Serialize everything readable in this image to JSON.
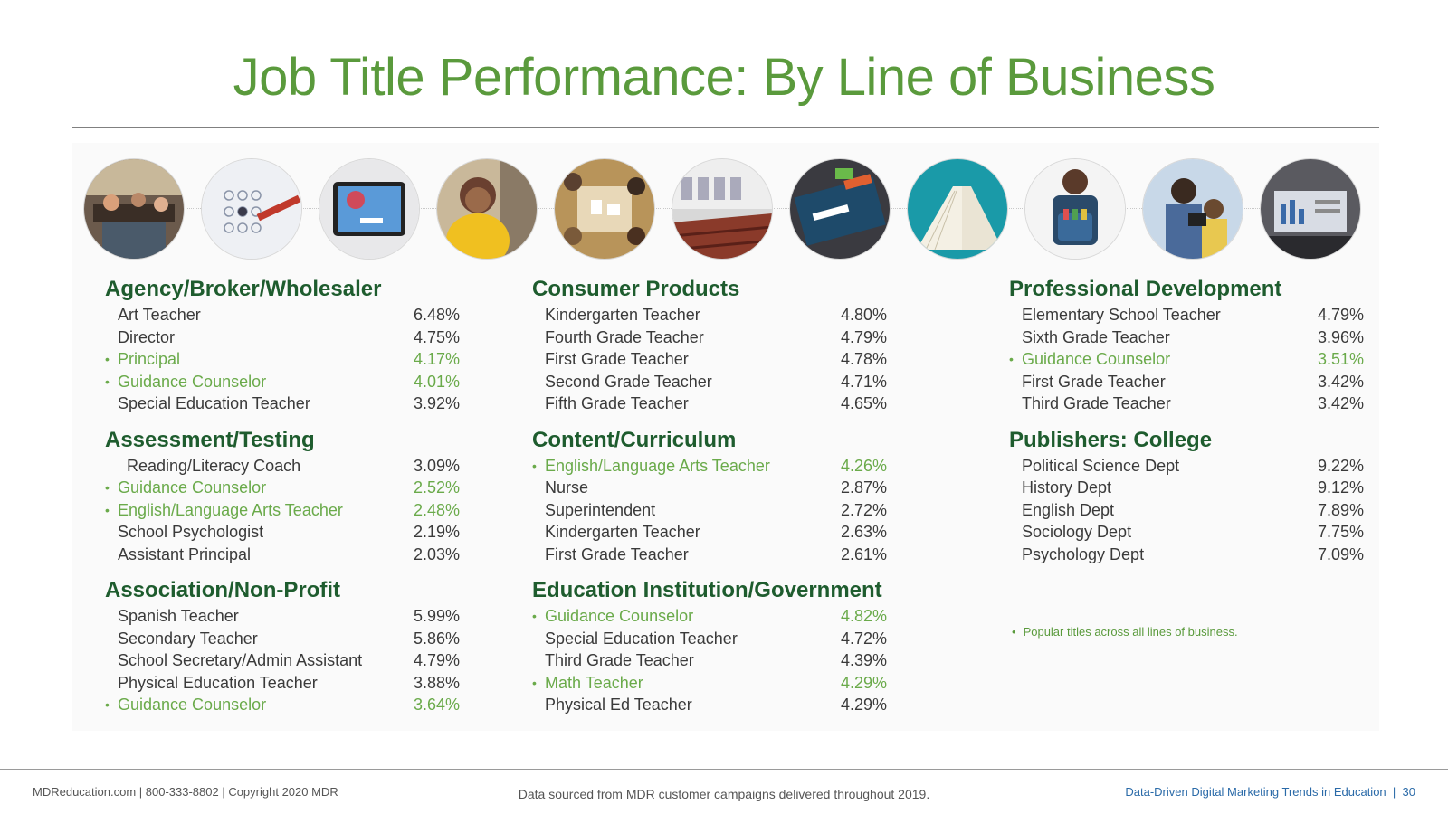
{
  "title": "Job Title Performance: By Line of Business",
  "photos": [
    "office-workers-photo",
    "test-answer-sheet-photo",
    "tablet-email-photo",
    "smiling-woman-photo",
    "students-table-photo",
    "lecture-hall-photo",
    "laptop-marketing-photo",
    "open-book-photo",
    "student-backpack-photo",
    "father-child-tablet-photo",
    "laptop-charts-photo"
  ],
  "sections": {
    "agency": {
      "heading": "Agency/Broker/Wholesaler",
      "rows": [
        {
          "title": "Art Teacher",
          "value": "6.48%"
        },
        {
          "title": "Director",
          "value": "4.75%"
        },
        {
          "title": "Principal",
          "value": "4.17%"
        },
        {
          "title": "Guidance Counselor",
          "value": "4.01%"
        },
        {
          "title": "Special Education Teacher",
          "value": "3.92%"
        }
      ]
    },
    "assessment": {
      "heading": "Assessment/Testing",
      "rows": [
        {
          "title": "Reading/Literacy Coach",
          "value": "3.09%"
        },
        {
          "title": "Guidance Counselor",
          "value": "2.52%"
        },
        {
          "title": "English/Language Arts Teacher",
          "value": "2.48%"
        },
        {
          "title": "School Psychologist",
          "value": "2.19%"
        },
        {
          "title": "Assistant Principal",
          "value": "2.03%"
        }
      ]
    },
    "association": {
      "heading": "Association/Non-Profit",
      "rows": [
        {
          "title": "Spanish Teacher",
          "value": "5.99%"
        },
        {
          "title": "Secondary Teacher",
          "value": "5.86%"
        },
        {
          "title": "School Secretary/Admin Assistant",
          "value": "4.79%"
        },
        {
          "title": "Physical Education Teacher",
          "value": "3.88%"
        },
        {
          "title": "Guidance Counselor",
          "value": "3.64%"
        }
      ]
    },
    "consumer": {
      "heading": "Consumer Products",
      "rows": [
        {
          "title": "Kindergarten Teacher",
          "value": "4.80%"
        },
        {
          "title": "Fourth Grade Teacher",
          "value": "4.79%"
        },
        {
          "title": "First Grade Teacher",
          "value": "4.78%"
        },
        {
          "title": "Second Grade Teacher",
          "value": "4.71%"
        },
        {
          "title": "Fifth Grade Teacher",
          "value": "4.65%"
        }
      ]
    },
    "content": {
      "heading": "Content/Curriculum",
      "rows": [
        {
          "title": "English/Language Arts Teacher",
          "value": "4.26%"
        },
        {
          "title": "Nurse",
          "value": "2.87%"
        },
        {
          "title": "Superintendent",
          "value": "2.72%"
        },
        {
          "title": "Kindergarten Teacher",
          "value": "2.63%"
        },
        {
          "title": "First Grade Teacher",
          "value": "2.61%"
        }
      ]
    },
    "education": {
      "heading": "Education Institution/Government",
      "rows": [
        {
          "title": "Guidance Counselor",
          "value": "4.82%"
        },
        {
          "title": "Special Education Teacher",
          "value": "4.72%"
        },
        {
          "title": "Third Grade Teacher",
          "value": "4.39%"
        },
        {
          "title": "Math Teacher",
          "value": "4.29%"
        },
        {
          "title": "Physical Ed Teacher",
          "value": "4.29%"
        }
      ]
    },
    "professional": {
      "heading": "Professional Development",
      "rows": [
        {
          "title": "Elementary School Teacher",
          "value": "4.79%"
        },
        {
          "title": "Sixth Grade Teacher",
          "value": "3.96%"
        },
        {
          "title": "Guidance Counselor",
          "value": "3.51%"
        },
        {
          "title": "First Grade Teacher",
          "value": "3.42%"
        },
        {
          "title": "Third Grade Teacher",
          "value": "3.42%"
        }
      ]
    },
    "publishers": {
      "heading": "Publishers: College",
      "rows": [
        {
          "title": "Political Science Dept",
          "value": "9.22%"
        },
        {
          "title": "History Dept",
          "value": "9.12%"
        },
        {
          "title": "English Dept",
          "value": "7.89%"
        },
        {
          "title": "Sociology Dept",
          "value": "7.75%"
        },
        {
          "title": "Psychology Dept",
          "value": "7.09%"
        }
      ]
    }
  },
  "legend": {
    "bullet": "•",
    "text": "Popular titles across all lines of business."
  },
  "footer": {
    "left": "MDReducation.com  |  800-333-8802  |  Copyright 2020 MDR",
    "center": "Data sourced from MDR customer campaigns delivered throughout 2019.",
    "right_text": "Data-Driven Digital Marketing Trends in Education",
    "separator": "|",
    "page": "30"
  },
  "colors": {
    "title": "#5a9a3c",
    "heading": "#1e5c2e",
    "popular": "#6aaa4a",
    "footer_link": "#2a6aa8"
  }
}
